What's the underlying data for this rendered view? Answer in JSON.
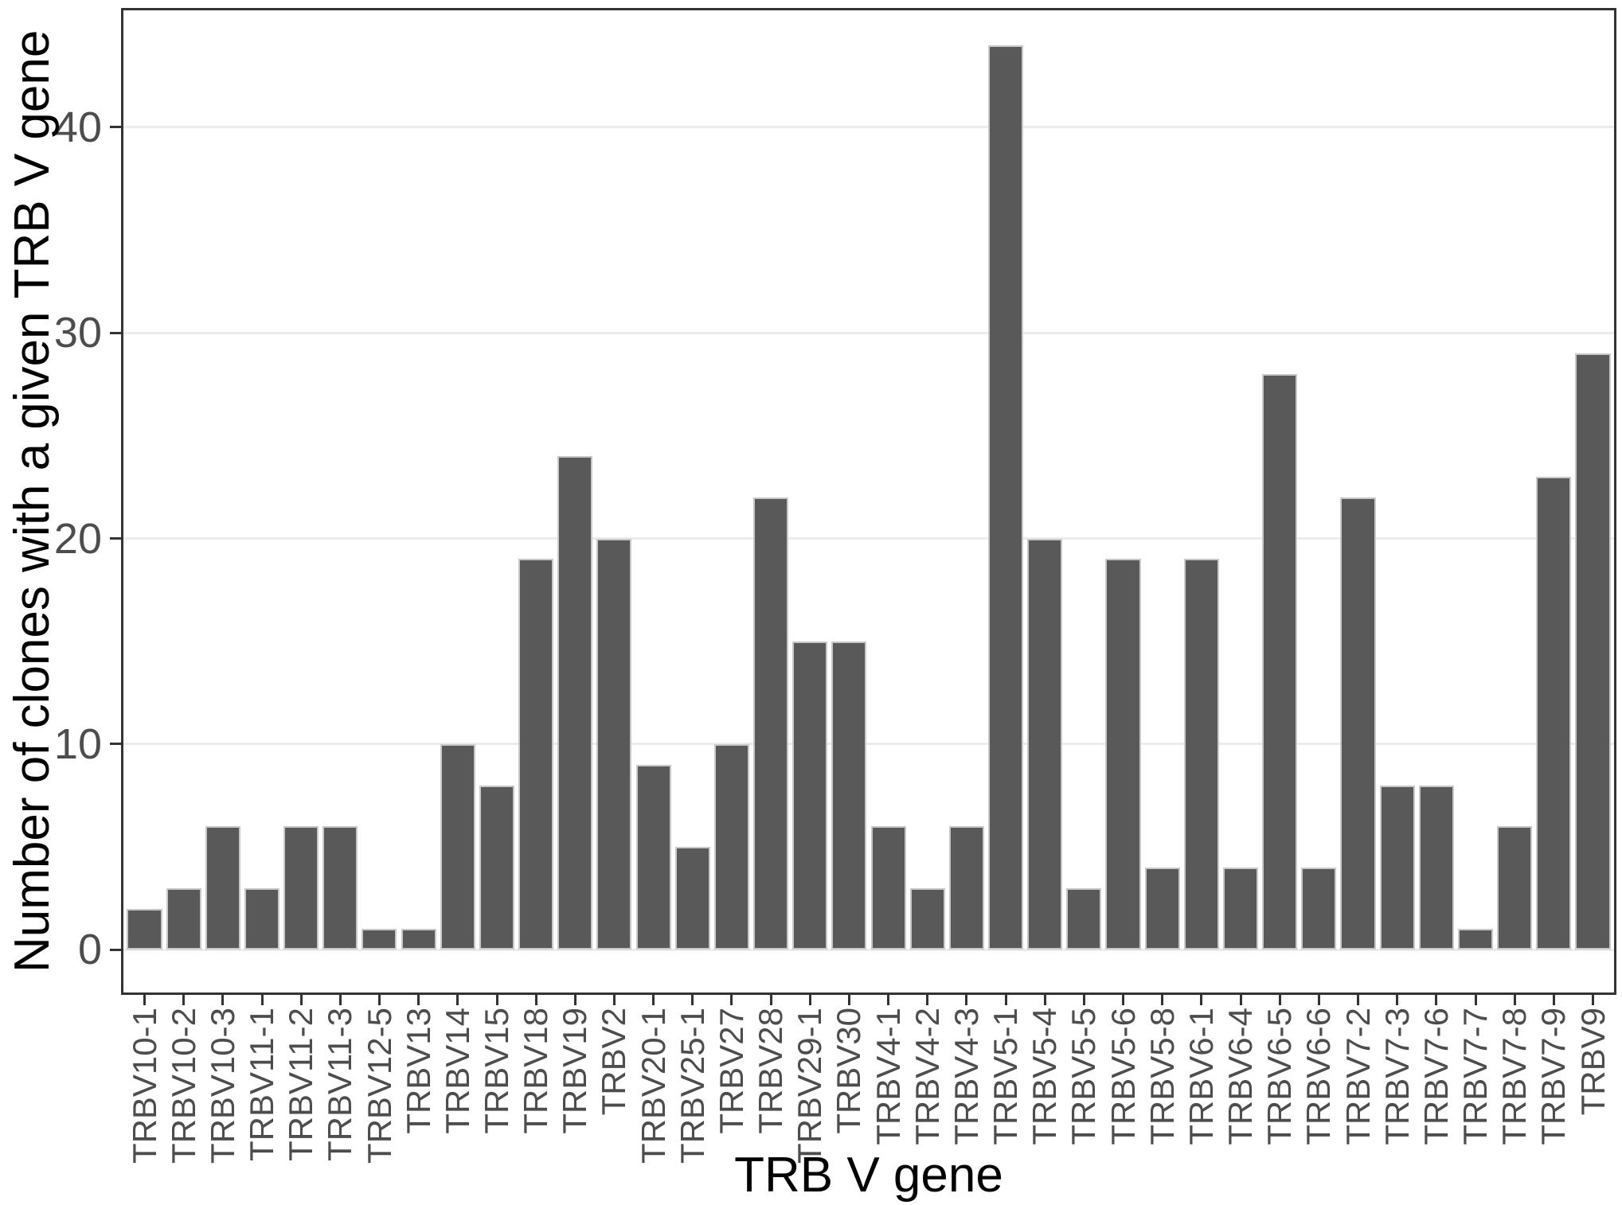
{
  "figure": {
    "background": "#ffffff"
  },
  "chart_data": {
    "type": "bar",
    "title": "",
    "xlabel": "TRB V gene",
    "ylabel": "Number of clones with a given TRB V gene",
    "categories": [
      "TRBV10-1",
      "TRBV10-2",
      "TRBV10-3",
      "TRBV11-1",
      "TRBV11-2",
      "TRBV11-3",
      "TRBV12-5",
      "TRBV13",
      "TRBV14",
      "TRBV15",
      "TRBV18",
      "TRBV19",
      "TRBV2",
      "TRBV20-1",
      "TRBV25-1",
      "TRBV27",
      "TRBV28",
      "TRBV29-1",
      "TRBV30",
      "TRBV4-1",
      "TRBV4-2",
      "TRBV4-3",
      "TRBV5-1",
      "TRBV5-4",
      "TRBV5-5",
      "TRBV5-6",
      "TRBV5-8",
      "TRBV6-1",
      "TRBV6-4",
      "TRBV6-5",
      "TRBV6-6",
      "TRBV7-2",
      "TRBV7-3",
      "TRBV7-6",
      "TRBV7-7",
      "TRBV7-8",
      "TRBV7-9",
      "TRBV9"
    ],
    "values": [
      2,
      3,
      6,
      3,
      6,
      6,
      1,
      1,
      10,
      8,
      19,
      24,
      20,
      9,
      5,
      10,
      22,
      15,
      15,
      6,
      3,
      6,
      44,
      20,
      3,
      19,
      4,
      19,
      4,
      28,
      4,
      22,
      8,
      8,
      1,
      6,
      23,
      29
    ],
    "ylim": [
      0,
      44
    ],
    "yticks": [
      0,
      10,
      20,
      30,
      40
    ],
    "grid": "major-y",
    "legend": "none",
    "colors": {
      "bar_fill": "#595959",
      "bar_border": "#c8c8c8",
      "gridline": "#ececec",
      "panel_border": "#333333",
      "tick_mark": "#333333",
      "tick_label": "#4d4d4d",
      "axis_title": "#000000"
    }
  }
}
